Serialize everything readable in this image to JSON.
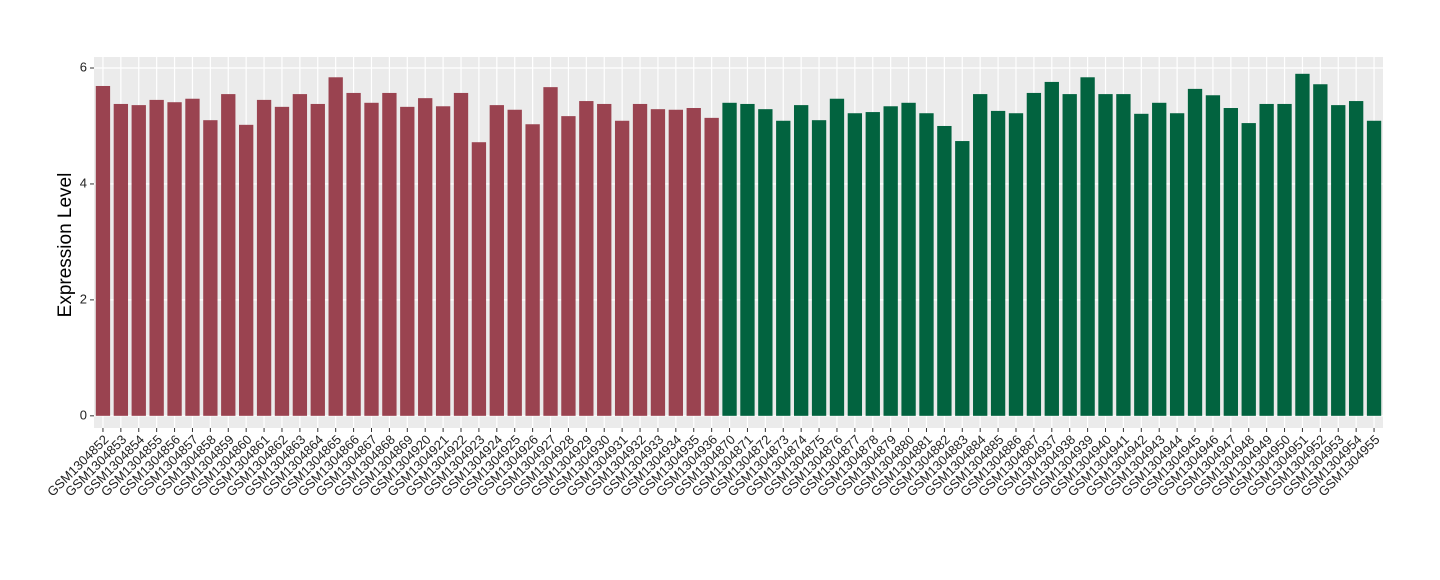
{
  "chart_data": {
    "type": "bar",
    "y_label": "Expression Level",
    "categories": [
      "GSM1304852",
      "GSM1304853",
      "GSM1304854",
      "GSM1304855",
      "GSM1304856",
      "GSM1304857",
      "GSM1304858",
      "GSM1304859",
      "GSM1304860",
      "GSM1304861",
      "GSM1304862",
      "GSM1304863",
      "GSM1304864",
      "GSM1304865",
      "GSM1304866",
      "GSM1304867",
      "GSM1304868",
      "GSM1304869",
      "GSM1304920",
      "GSM1304921",
      "GSM1304922",
      "GSM1304923",
      "GSM1304924",
      "GSM1304925",
      "GSM1304926",
      "GSM1304927",
      "GSM1304928",
      "GSM1304929",
      "GSM1304930",
      "GSM1304931",
      "GSM1304932",
      "GSM1304933",
      "GSM1304934",
      "GSM1304935",
      "GSM1304936",
      "GSM1304870",
      "GSM1304871",
      "GSM1304872",
      "GSM1304873",
      "GSM1304874",
      "GSM1304875",
      "GSM1304876",
      "GSM1304877",
      "GSM1304878",
      "GSM1304879",
      "GSM1304880",
      "GSM1304881",
      "GSM1304882",
      "GSM1304883",
      "GSM1304884",
      "GSM1304885",
      "GSM1304886",
      "GSM1304887",
      "GSM1304937",
      "GSM1304938",
      "GSM1304939",
      "GSM1304940",
      "GSM1304941",
      "GSM1304942",
      "GSM1304943",
      "GSM1304944",
      "GSM1304945",
      "GSM1304946",
      "GSM1304947",
      "GSM1304948",
      "GSM1304949",
      "GSM1304950",
      "GSM1304951",
      "GSM1304952",
      "GSM1304953",
      "GSM1304954",
      "GSM1304955"
    ],
    "values": [
      5.69,
      5.38,
      5.36,
      5.45,
      5.41,
      5.47,
      5.1,
      5.55,
      5.02,
      5.45,
      5.33,
      5.55,
      5.38,
      5.84,
      5.57,
      5.4,
      5.57,
      5.33,
      5.48,
      5.34,
      5.57,
      4.72,
      5.36,
      5.28,
      5.03,
      5.67,
      5.17,
      5.43,
      5.38,
      5.09,
      5.38,
      5.29,
      5.28,
      5.31,
      5.14,
      5.4,
      5.38,
      5.29,
      5.09,
      5.36,
      5.1,
      5.47,
      5.22,
      5.24,
      5.34,
      5.4,
      5.22,
      5.0,
      4.74,
      5.55,
      5.26,
      5.22,
      5.57,
      5.76,
      5.55,
      5.84,
      5.55,
      5.55,
      5.21,
      5.4,
      5.22,
      5.64,
      5.53,
      5.31,
      5.05,
      5.38,
      5.38,
      5.9,
      5.72,
      5.36,
      5.43,
      5.09
    ],
    "colors": [
      "#9a4350",
      "#9a4350",
      "#9a4350",
      "#9a4350",
      "#9a4350",
      "#9a4350",
      "#9a4350",
      "#9a4350",
      "#9a4350",
      "#9a4350",
      "#9a4350",
      "#9a4350",
      "#9a4350",
      "#9a4350",
      "#9a4350",
      "#9a4350",
      "#9a4350",
      "#9a4350",
      "#9a4350",
      "#9a4350",
      "#9a4350",
      "#9a4350",
      "#9a4350",
      "#9a4350",
      "#9a4350",
      "#9a4350",
      "#9a4350",
      "#9a4350",
      "#9a4350",
      "#9a4350",
      "#9a4350",
      "#9a4350",
      "#9a4350",
      "#9a4350",
      "#9a4350",
      "#02633f",
      "#02633f",
      "#02633f",
      "#02633f",
      "#02633f",
      "#02633f",
      "#02633f",
      "#02633f",
      "#02633f",
      "#02633f",
      "#02633f",
      "#02633f",
      "#02633f",
      "#02633f",
      "#02633f",
      "#02633f",
      "#02633f",
      "#02633f",
      "#02633f",
      "#02633f",
      "#02633f",
      "#02633f",
      "#02633f",
      "#02633f",
      "#02633f",
      "#02633f",
      "#02633f",
      "#02633f",
      "#02633f",
      "#02633f",
      "#02633f",
      "#02633f",
      "#02633f",
      "#02633f",
      "#02633f",
      "#02633f",
      "#02633f"
    ],
    "ylim": [
      -0.21,
      6.19
    ],
    "yticks": [
      0,
      2,
      4,
      6
    ],
    "grid": true
  }
}
